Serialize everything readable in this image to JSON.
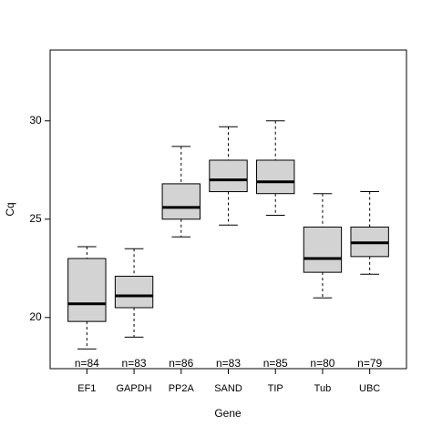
{
  "chart_data": {
    "type": "boxplot",
    "x_label": "Gene",
    "y_label": "Cq",
    "categories": [
      "EF1",
      "GAPDH",
      "PP2A",
      "SAND",
      "TIP",
      "Tub",
      "UBC"
    ],
    "boxes": [
      {
        "min": 18.4,
        "q1": 19.8,
        "median": 20.7,
        "q3": 23.0,
        "max": 23.6
      },
      {
        "min": 19.0,
        "q1": 20.5,
        "median": 21.1,
        "q3": 22.1,
        "max": 23.5
      },
      {
        "min": 24.1,
        "q1": 25.0,
        "median": 25.6,
        "q3": 26.8,
        "max": 28.7
      },
      {
        "min": 24.7,
        "q1": 26.4,
        "median": 27.0,
        "q3": 28.0,
        "max": 29.7
      },
      {
        "min": 25.2,
        "q1": 26.3,
        "median": 26.9,
        "q3": 28.0,
        "max": 30.0
      },
      {
        "min": 21.0,
        "q1": 22.3,
        "median": 23.0,
        "q3": 24.6,
        "max": 26.3
      },
      {
        "min": 22.2,
        "q1": 23.1,
        "median": 23.8,
        "q3": 24.6,
        "max": 26.4
      }
    ],
    "annotations": [
      "n=84",
      "n=83",
      "n=86",
      "n=83",
      "n=85",
      "n=80",
      "n=79"
    ],
    "color": "#d3d3d3",
    "ylim": [
      17.4,
      33.6
    ],
    "yticks": [
      20,
      25,
      30
    ]
  }
}
